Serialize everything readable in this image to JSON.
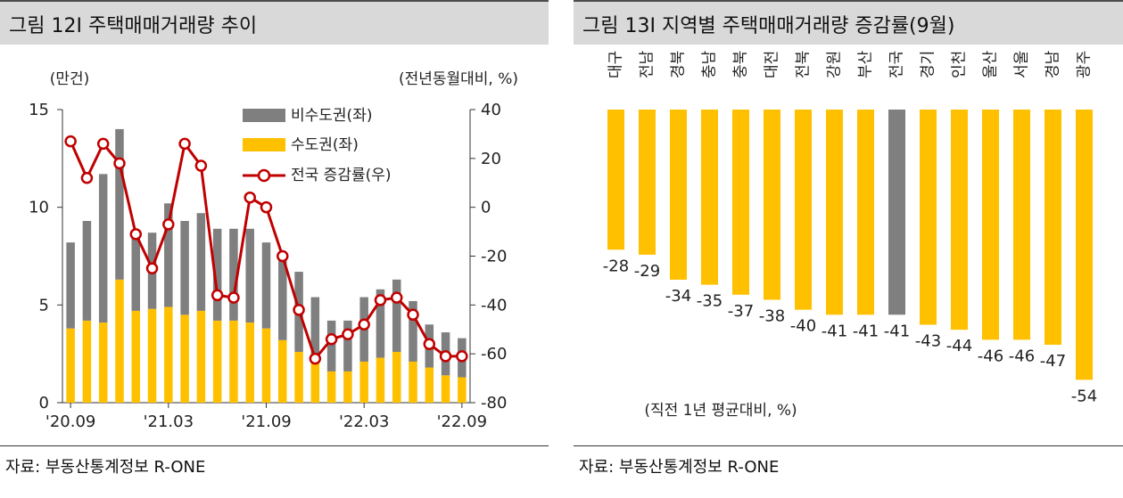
{
  "left": {
    "title": "그림 12I 주택매매거래량 추이",
    "source": "자료: 부동산통계정보 R-ONE",
    "chart_data": {
      "type": "bar",
      "stacked": true,
      "left_axis_unit": "(만건)",
      "right_axis_unit": "(전년동월대비, %)",
      "left_ylim": [
        0,
        15
      ],
      "left_ticks": [
        "0",
        "5",
        "10",
        "15"
      ],
      "right_ylim": [
        -80,
        40
      ],
      "right_ticks": [
        "-80",
        "-60",
        "-40",
        "-20",
        "0",
        "20",
        "40"
      ],
      "x_tick_labels": [
        "'20.09",
        "'21.03",
        "'21.09",
        "'22.03",
        "'22.09"
      ],
      "x_tick_index": [
        0,
        6,
        12,
        18,
        24
      ],
      "categories": [
        "2020-09",
        "2020-10",
        "2020-11",
        "2020-12",
        "2021-01",
        "2021-02",
        "2021-03",
        "2021-04",
        "2021-05",
        "2021-06",
        "2021-07",
        "2021-08",
        "2021-09",
        "2021-10",
        "2021-11",
        "2021-12",
        "2022-01",
        "2022-02",
        "2022-03",
        "2022-04",
        "2022-05",
        "2022-06",
        "2022-07",
        "2022-08",
        "2022-09"
      ],
      "series": [
        {
          "name": "수도권(좌)",
          "kind": "bar",
          "color": "#FFC000",
          "values": [
            3.8,
            4.2,
            4.1,
            6.3,
            4.7,
            4.8,
            4.9,
            4.5,
            4.7,
            4.2,
            4.2,
            4.1,
            3.8,
            3.2,
            2.6,
            2.1,
            1.6,
            1.6,
            2.1,
            2.3,
            2.6,
            2.1,
            1.8,
            1.4,
            1.3
          ]
        },
        {
          "name": "비수도권(좌)",
          "kind": "bar",
          "color": "#7f7f7f",
          "values": [
            4.4,
            5.1,
            7.6,
            7.7,
            4.0,
            3.9,
            5.3,
            4.8,
            5.0,
            4.7,
            4.7,
            4.8,
            4.4,
            4.2,
            4.1,
            3.3,
            2.6,
            2.6,
            3.3,
            3.5,
            3.7,
            3.1,
            2.2,
            2.2,
            2.0
          ]
        },
        {
          "name": "전국 증감률(우)",
          "kind": "line",
          "color": "#C00000",
          "values": [
            27,
            12,
            26,
            18,
            -11,
            -25,
            -7,
            26,
            17,
            -36,
            -37,
            4,
            0,
            -20,
            -42,
            -62,
            -54,
            -52,
            -48,
            -38,
            -37,
            -44,
            -56,
            -61,
            -61
          ]
        }
      ],
      "legend": [
        "비수도권(좌)",
        "수도권(좌)",
        "전국 증감률(우)"
      ]
    }
  },
  "right": {
    "title": "그림 13I 지역별 주택매매거래량 증감률(9월)",
    "source": "자료: 부동산통계정보 R-ONE",
    "chart_data": {
      "type": "bar",
      "note": "(직전 1년 평균대비, %)",
      "categories": [
        "대구",
        "전남",
        "경북",
        "충남",
        "충북",
        "대전",
        "전북",
        "강원",
        "부산",
        "전국",
        "경기",
        "인천",
        "울산",
        "서울",
        "경남",
        "광주"
      ],
      "values": [
        -28,
        -29,
        -34,
        -35,
        -37,
        -38,
        -40,
        -41,
        -41,
        -41,
        -43,
        -44,
        -46,
        -46,
        -47,
        -54
      ],
      "value_labels": [
        "-28",
        "-29",
        "-34",
        "-35",
        "-37",
        "-38",
        "-40",
        "-41",
        "-41",
        "-41",
        "-43",
        "-44",
        "-46",
        "-46",
        "-47",
        "-54"
      ],
      "highlight": "전국",
      "bar_color": "#FFC000",
      "highlight_color": "#7f7f7f",
      "ylim": [
        -60,
        0
      ]
    }
  }
}
